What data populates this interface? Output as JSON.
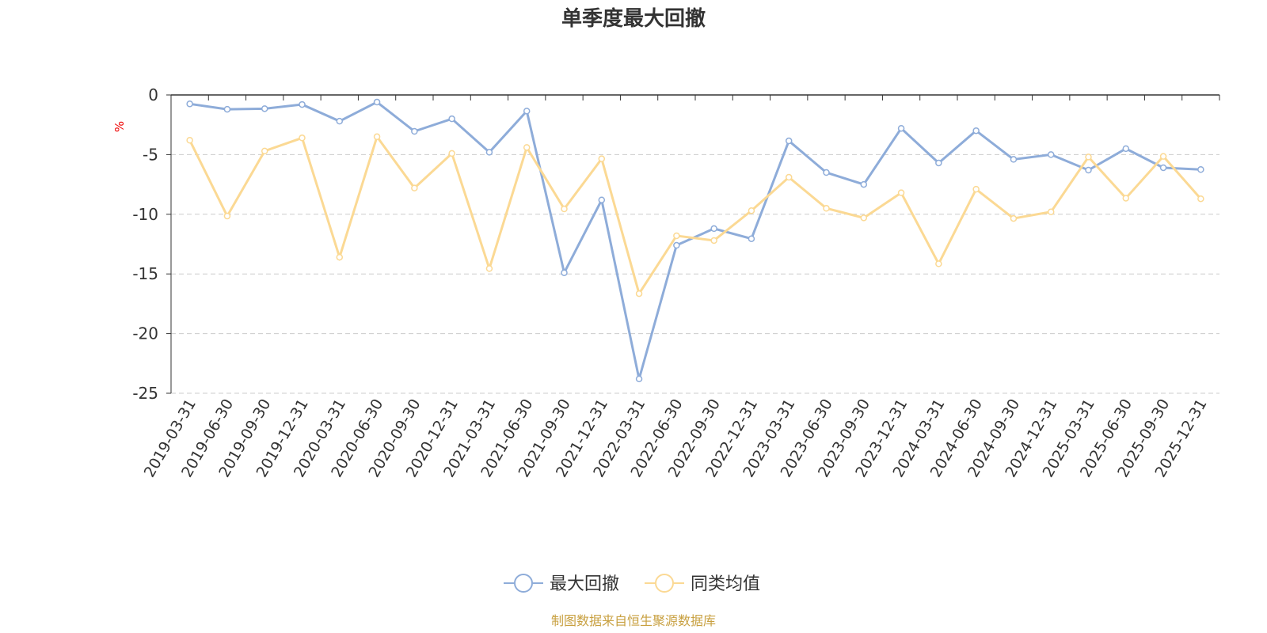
{
  "chart_data": {
    "type": "line",
    "title": "单季度最大回撤",
    "y_unit": "%",
    "source": "制图数据来自恒生聚源数据库",
    "categories": [
      "2019-03-31",
      "2019-06-30",
      "2019-09-30",
      "2019-12-31",
      "2020-03-31",
      "2020-06-30",
      "2020-09-30",
      "2020-12-31",
      "2021-03-31",
      "2021-06-30",
      "2021-09-30",
      "2021-12-31",
      "2022-03-31",
      "2022-06-30",
      "2022-09-30",
      "2022-12-31",
      "2023-03-31",
      "2023-06-30",
      "2023-09-30",
      "2023-12-31",
      "2024-03-31",
      "2024-06-30",
      "2024-09-30",
      "2024-12-31",
      "2025-03-31",
      "2025-06-30",
      "2025-09-30",
      "2025-12-31"
    ],
    "series": [
      {
        "name": "最大回撤",
        "color": "#8eacd9",
        "values": [
          -0.75,
          -1.2,
          -1.15,
          -0.8,
          -2.2,
          -0.6,
          -3.05,
          -2.0,
          -4.8,
          -1.35,
          -14.9,
          -8.8,
          -23.8,
          -12.6,
          -11.2,
          -12.05,
          -3.85,
          -6.5,
          -7.5,
          -2.8,
          -5.7,
          -3.0,
          -5.4,
          -5.0,
          -6.3,
          -4.5,
          -6.1,
          -6.25
        ]
      },
      {
        "name": "同类均值",
        "color": "#fbd994",
        "values": [
          -3.8,
          -10.15,
          -4.7,
          -3.6,
          -13.6,
          -3.5,
          -7.8,
          -4.9,
          -14.55,
          -4.4,
          -9.55,
          -5.35,
          -16.65,
          -11.8,
          -12.2,
          -9.7,
          -6.9,
          -9.5,
          -10.3,
          -8.2,
          -14.15,
          -7.9,
          -10.35,
          -9.8,
          -5.2,
          -8.65,
          -5.15,
          -8.7
        ]
      }
    ],
    "ylim": [
      -25,
      0
    ],
    "yticks": [
      0,
      -5,
      -10,
      -15,
      -20,
      -25
    ],
    "grid": true
  }
}
